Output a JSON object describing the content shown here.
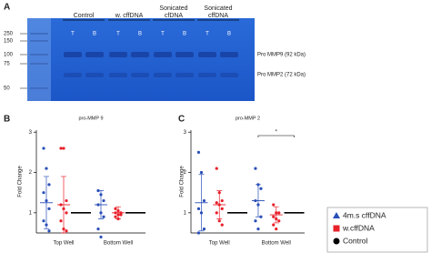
{
  "gel": {
    "panel": "A",
    "lanes": [
      {
        "name": [
          "Control"
        ],
        "wells": [
          "T",
          "B"
        ]
      },
      {
        "name": [
          "w. cffDNA"
        ],
        "wells": [
          "T",
          "B"
        ]
      },
      {
        "name": [
          "Sonicated",
          "cfDNA"
        ],
        "wells": [
          "T",
          "B"
        ]
      },
      {
        "name": [
          "Sonicated",
          "cffDNA"
        ],
        "wells": [
          "T",
          "B"
        ]
      }
    ],
    "markers": [
      250,
      150,
      100,
      75,
      50
    ],
    "bands": [
      "Pro MMP9 (92 kDa)",
      "Pro MMP2 (72 kDa)"
    ]
  },
  "chart_data": [
    {
      "type": "scatter",
      "panel": "B",
      "title": "pro-MMP 9",
      "y_label": "Fold Change",
      "categories": [
        "Top Well",
        "Bottom Well"
      ],
      "ylim": [
        0.5,
        3.05
      ],
      "yticks": [
        1,
        2,
        3
      ],
      "series": [
        {
          "name": "4m.s cffDNA",
          "color": "#2a4fb8",
          "marker": "triangle",
          "values": [
            [
              2.6,
              2.1,
              1.7,
              1.5,
              1.3,
              1.1,
              0.8,
              0.7,
              0.55
            ],
            [
              1.55,
              1.45,
              1.3,
              1.2,
              1.0,
              0.9,
              0.6,
              0.4
            ]
          ],
          "mean": [
            1.25,
            1.2
          ],
          "sd": [
            0.65,
            0.35
          ]
        },
        {
          "name": "w.cffDNA",
          "color": "#e8202a",
          "marker": "square",
          "values": [
            [
              2.6,
              2.6,
              1.3,
              1.2,
              1.1,
              1.0,
              0.8,
              0.6,
              0.55
            ],
            [
              1.1,
              1.05,
              1.0,
              1.0,
              0.95,
              0.95,
              0.9,
              0.85
            ]
          ],
          "mean": [
            1.2,
            1.0
          ],
          "sd": [
            0.7,
            0.15
          ]
        },
        {
          "name": "Control",
          "color": "#000000",
          "marker": "circle",
          "mean": [
            1,
            1
          ]
        }
      ]
    },
    {
      "type": "scatter",
      "panel": "C",
      "title": "pro-MMP 2",
      "y_label": "Fold Change",
      "categories": [
        "Top Well",
        "Bottom Well"
      ],
      "ylim": [
        0.5,
        3.05
      ],
      "yticks": [
        1,
        2,
        3
      ],
      "series": [
        {
          "color": "#2a4fb8",
          "values": [
            [
              2.5,
              2.0,
              1.3,
              1.1,
              1.0,
              0.6,
              0.5
            ],
            [
              2.1,
              1.7,
              1.6,
              1.3,
              1.2,
              0.9,
              0.8,
              0.6
            ]
          ],
          "mean": [
            1.25,
            1.3
          ],
          "sd": [
            0.7,
            0.4
          ]
        },
        {
          "color": "#e8202a",
          "values": [
            [
              2.1,
              1.5,
              1.3,
              1.25,
              1.2,
              1.1,
              1.0,
              0.8,
              0.7
            ],
            [
              1.2,
              1.0,
              1.0,
              0.9,
              0.85,
              0.8,
              0.7,
              0.6
            ]
          ],
          "mean": [
            1.2,
            0.95
          ],
          "sd": [
            0.35,
            0.2
          ]
        },
        {
          "color": "#000000",
          "mean": [
            1,
            1
          ]
        }
      ],
      "significance": "*"
    }
  ]
}
